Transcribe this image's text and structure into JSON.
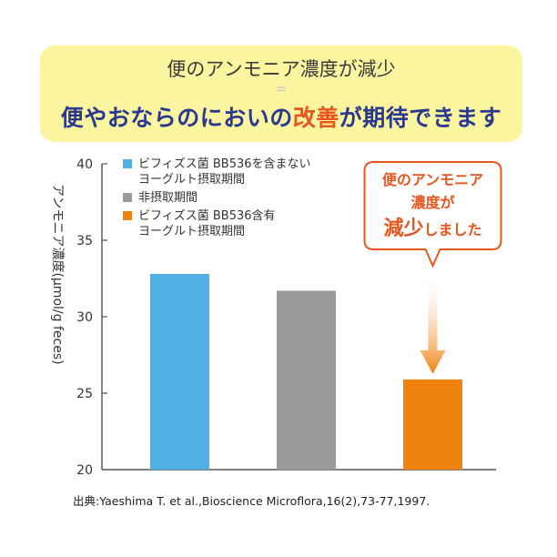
{
  "banner": {
    "line1": "便のアンモニア濃度が減少",
    "equals": "=",
    "line2_part1": "便やおならのにおいの",
    "line2_highlight": "改善",
    "line2_part2": "が期待できます"
  },
  "callout": {
    "line1": "便のアンモニア",
    "line2": "濃度が",
    "line3a": "減少",
    "line3b": "しました"
  },
  "source": "出典:Yaeshima T. et al.,Bioscience Microflora,16(2),73-77,1997.",
  "colors": {
    "banner_bg": "#fbf5a0",
    "navy": "#2a3990",
    "orange": "#f0820f",
    "callout_red": "#e8561f",
    "blue": "#4fb0e3",
    "gray": "#999a9c"
  },
  "chart_data": {
    "type": "bar",
    "ylabel": "アンモニア濃度(μmol/g feces)",
    "ylim": [
      20,
      40
    ],
    "yticks": [
      20,
      25,
      30,
      35,
      40
    ],
    "grid": false,
    "legend_position": "top-left",
    "series": [
      {
        "name": "ビフィズス菌 BB536を含まない\nヨーグルト摂取期間",
        "value": 32.8,
        "color": "#4fb0e3"
      },
      {
        "name": "非摂取期間",
        "value": 31.7,
        "color": "#999a9c"
      },
      {
        "name": "ビフィズス菌 BB536含有\nヨーグルト摂取期間",
        "value": 25.9,
        "color": "#f0820f"
      }
    ]
  }
}
